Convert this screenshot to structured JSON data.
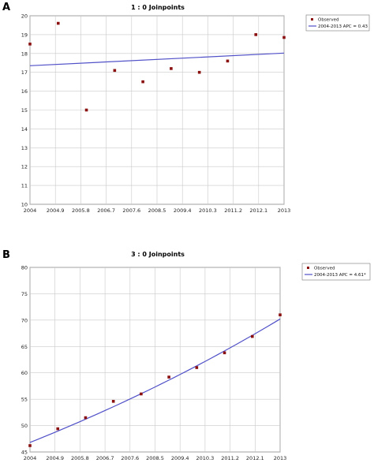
{
  "chart_data": [
    {
      "panel_label": "A",
      "type": "scatter",
      "title": "1 : 0 Joinpoints",
      "x": [
        2004,
        2005,
        2006,
        2007,
        2008,
        2009,
        2010,
        2011,
        2012,
        2013
      ],
      "xticks": [
        "2004",
        "2004.9",
        "2005.8",
        "2006.7",
        "2007.6",
        "2008.5",
        "2009.4",
        "2010.3",
        "2011.2",
        "2012.1",
        "2013"
      ],
      "xlim": [
        2004,
        2013
      ],
      "ylim": [
        10,
        20
      ],
      "yticks": [
        10,
        11,
        12,
        13,
        14,
        15,
        16,
        17,
        18,
        19,
        20
      ],
      "grid": true,
      "legend_position": "top-right, outside plot",
      "series": [
        {
          "name": "Observed",
          "kind": "points",
          "color": "#8b1010",
          "values": [
            18.5,
            19.6,
            15.0,
            17.1,
            16.5,
            17.2,
            17.0,
            17.6,
            19.0,
            18.85
          ]
        },
        {
          "name": "2004-2013 APC = 0.43",
          "kind": "line",
          "color": "#5050c8",
          "x": [
            2004,
            2013
          ],
          "values": [
            17.35,
            18.02
          ]
        }
      ]
    },
    {
      "panel_label": "B",
      "type": "scatter",
      "title": "3 : 0 Joinpoints",
      "x": [
        2004,
        2005,
        2006,
        2007,
        2008,
        2009,
        2010,
        2011,
        2012,
        2013
      ],
      "xticks": [
        "2004",
        "2004.9",
        "2005.8",
        "2006.7",
        "2007.6",
        "2008.5",
        "2009.4",
        "2010.3",
        "2011.2",
        "2012.1",
        "2013"
      ],
      "xlim": [
        2004,
        2013
      ],
      "ylim": [
        45,
        80
      ],
      "yticks": [
        45,
        50,
        55,
        60,
        65,
        70,
        75,
        80
      ],
      "grid": true,
      "legend_position": "top-right, outside plot",
      "series": [
        {
          "name": "Observed",
          "kind": "points",
          "color": "#8b1010",
          "values": [
            46.2,
            49.4,
            51.5,
            54.6,
            56.0,
            59.2,
            61.0,
            63.8,
            66.9,
            71.0
          ]
        },
        {
          "name": "2004-2013 APC = 4.61*",
          "kind": "curve",
          "color": "#5050c8",
          "apc_percent": 4.61,
          "start_value": 46.8,
          "x_start": 2004,
          "x_end": 2013
        }
      ]
    }
  ]
}
